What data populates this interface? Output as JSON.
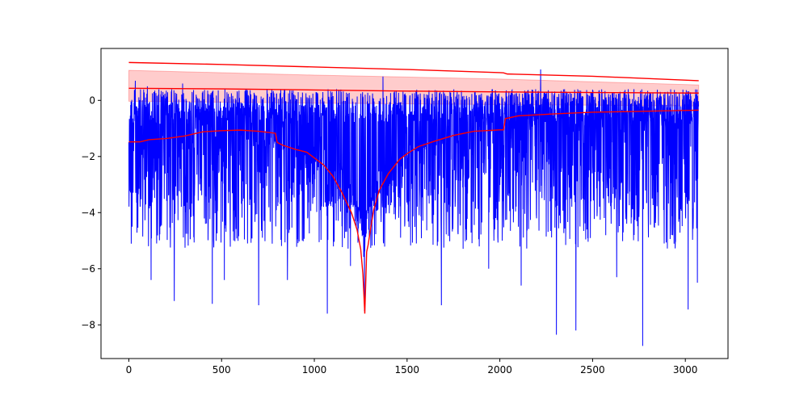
{
  "chart_data": {
    "type": "line",
    "title": "",
    "xlabel": "",
    "ylabel": "",
    "xlim": [
      -150,
      3230
    ],
    "ylim": [
      -9.2,
      1.85
    ],
    "x_ticks": [
      0,
      500,
      1000,
      1500,
      2000,
      2500,
      3000
    ],
    "y_ticks": [
      -8,
      -6,
      -4,
      -2,
      0
    ],
    "x_tick_labels": [
      "0",
      "500",
      "1000",
      "1500",
      "2000",
      "2500",
      "3000"
    ],
    "y_tick_labels": [
      "−8",
      "−6",
      "−4",
      "−2",
      "0"
    ],
    "grid": false,
    "legend": "none",
    "n_points": 3072,
    "series": [
      {
        "kind": "noisy-signal",
        "color": "#0000ff",
        "x_range": [
          0,
          3072
        ],
        "typical_range": [
          -3.8,
          0.4
        ],
        "notable_points": [
          {
            "x": 20,
            "y": -2.9
          },
          {
            "x": 35,
            "y": 0.7
          },
          {
            "x": 100,
            "y": 0.5
          },
          {
            "x": 120,
            "y": -6.4
          },
          {
            "x": 150,
            "y": -5.1
          },
          {
            "x": 245,
            "y": -7.15
          },
          {
            "x": 290,
            "y": 0.6
          },
          {
            "x": 450,
            "y": -7.25
          },
          {
            "x": 515,
            "y": -6.4
          },
          {
            "x": 700,
            "y": -7.3
          },
          {
            "x": 855,
            "y": -6.4
          },
          {
            "x": 1070,
            "y": -7.6
          },
          {
            "x": 1120,
            "y": 0.4
          },
          {
            "x": 1195,
            "y": -5.9
          },
          {
            "x": 1270,
            "y": -7.5
          },
          {
            "x": 1305,
            "y": -4.2
          },
          {
            "x": 1370,
            "y": 0.85
          },
          {
            "x": 1550,
            "y": -5.1
          },
          {
            "x": 1685,
            "y": -7.3
          },
          {
            "x": 1940,
            "y": -6.0
          },
          {
            "x": 2115,
            "y": -6.6
          },
          {
            "x": 2220,
            "y": 1.1
          },
          {
            "x": 2305,
            "y": -8.35
          },
          {
            "x": 2410,
            "y": -8.2
          },
          {
            "x": 2630,
            "y": -6.3
          },
          {
            "x": 2770,
            "y": -8.75
          },
          {
            "x": 2890,
            "y": 0.3
          },
          {
            "x": 3015,
            "y": -7.45
          },
          {
            "x": 3065,
            "y": -6.5
          }
        ]
      },
      {
        "kind": "upper-line",
        "color": "#ff0000",
        "points": [
          [
            0,
            1.35
          ],
          [
            500,
            1.28
          ],
          [
            1000,
            1.19
          ],
          [
            1500,
            1.1
          ],
          [
            2000,
            0.99
          ],
          [
            2020,
            0.98
          ],
          [
            2040,
            0.94
          ],
          [
            2500,
            0.86
          ],
          [
            3072,
            0.7
          ]
        ]
      },
      {
        "kind": "band",
        "color": "#ff0000",
        "upper": [
          [
            0,
            1.07
          ],
          [
            1000,
            0.9
          ],
          [
            2000,
            0.76
          ],
          [
            3072,
            0.55
          ]
        ],
        "lower": [
          [
            0,
            -0.03
          ],
          [
            1000,
            -0.1
          ],
          [
            2000,
            -0.15
          ],
          [
            3072,
            -0.2
          ]
        ]
      },
      {
        "kind": "middle-line",
        "color": "#ff0000",
        "points": [
          [
            0,
            0.43
          ],
          [
            500,
            0.41
          ],
          [
            1000,
            0.37
          ],
          [
            1500,
            0.33
          ],
          [
            2000,
            0.3
          ],
          [
            2500,
            0.28
          ],
          [
            3072,
            0.26
          ]
        ]
      },
      {
        "kind": "lower-envelope",
        "color": "#ff0000",
        "points": [
          [
            0,
            -1.48
          ],
          [
            60,
            -1.48
          ],
          [
            110,
            -1.4
          ],
          [
            200,
            -1.36
          ],
          [
            300,
            -1.27
          ],
          [
            400,
            -1.12
          ],
          [
            500,
            -1.08
          ],
          [
            600,
            -1.06
          ],
          [
            700,
            -1.1
          ],
          [
            790,
            -1.17
          ],
          [
            800,
            -1.5
          ],
          [
            830,
            -1.6
          ],
          [
            900,
            -1.75
          ],
          [
            960,
            -1.85
          ],
          [
            1000,
            -2.05
          ],
          [
            1050,
            -2.3
          ],
          [
            1100,
            -2.7
          ],
          [
            1150,
            -3.3
          ],
          [
            1200,
            -4.0
          ],
          [
            1230,
            -4.6
          ],
          [
            1250,
            -5.3
          ],
          [
            1262,
            -6.2
          ],
          [
            1272,
            -7.6
          ],
          [
            1282,
            -5.4
          ],
          [
            1290,
            -5.15
          ],
          [
            1305,
            -4.5
          ],
          [
            1320,
            -3.9
          ],
          [
            1350,
            -3.2
          ],
          [
            1400,
            -2.6
          ],
          [
            1460,
            -2.1
          ],
          [
            1500,
            -1.9
          ],
          [
            1560,
            -1.65
          ],
          [
            1650,
            -1.45
          ],
          [
            1750,
            -1.25
          ],
          [
            1860,
            -1.1
          ],
          [
            2000,
            -1.05
          ],
          [
            2020,
            -1.05
          ],
          [
            2030,
            -0.65
          ],
          [
            2100,
            -0.55
          ],
          [
            2300,
            -0.48
          ],
          [
            2500,
            -0.42
          ],
          [
            2700,
            -0.4
          ],
          [
            2900,
            -0.37
          ],
          [
            3072,
            -0.35
          ]
        ]
      }
    ]
  }
}
